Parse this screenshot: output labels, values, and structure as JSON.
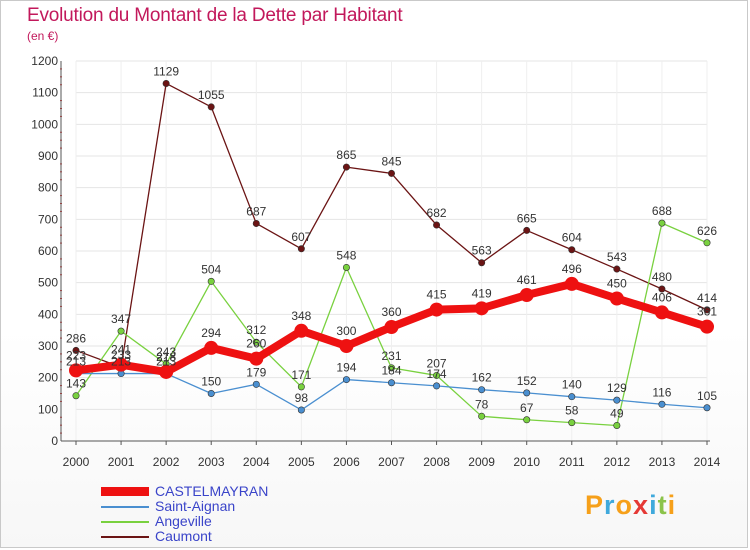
{
  "title": "Evolution du Montant de la Dette par Habitant",
  "subtitle": "(en €)",
  "logo": {
    "text": "Proxiti",
    "colors": [
      "#f6a01a",
      "#3fa9dc",
      "#f6a01a",
      "#e53935",
      "#3fa9dc",
      "#8bc34a",
      "#f6a01a"
    ]
  },
  "chart_data": {
    "type": "line",
    "categories": [
      "2000",
      "2001",
      "2002",
      "2003",
      "2004",
      "2005",
      "2006",
      "2007",
      "2008",
      "2009",
      "2010",
      "2011",
      "2012",
      "2013",
      "2014"
    ],
    "ylim": [
      0,
      1200
    ],
    "yticks": [
      "0",
      "100",
      "200",
      "300",
      "400",
      "500",
      "600",
      "700",
      "800",
      "900",
      "1000",
      "1100",
      "1200"
    ],
    "grid": true,
    "legend_position": "bottom-left",
    "series": [
      {
        "name": "Caumont",
        "color": "#6b1414",
        "values": [
          286,
          233,
          1129,
          1055,
          687,
          607,
          865,
          845,
          682,
          563,
          665,
          604,
          543,
          480,
          414
        ],
        "labels": [
          "286",
          "233",
          "1129",
          "1055",
          "687",
          "607",
          "865",
          "845",
          "682",
          "563",
          "665",
          "604",
          "543",
          "480",
          "414"
        ]
      },
      {
        "name": "Angeville",
        "color": "#79d13f",
        "values": [
          143,
          347,
          243,
          504,
          312,
          171,
          548,
          231,
          207,
          78,
          67,
          58,
          49,
          688,
          626
        ],
        "labels": [
          "143",
          "347",
          "243",
          "504",
          "312",
          "171",
          "548",
          "231",
          "207",
          "78",
          "67",
          "58",
          "49",
          "688",
          "626"
        ]
      },
      {
        "name": "Saint-Aignan",
        "color": "#4a8fd0",
        "values": [
          213,
          213,
          213,
          150,
          179,
          98,
          194,
          184,
          174,
          162,
          152,
          140,
          129,
          116,
          105
        ],
        "labels": [
          "213",
          "213",
          "213",
          "150",
          "179",
          "98",
          "194",
          "184",
          "174",
          "162",
          "152",
          "140",
          "129",
          "116",
          "105"
        ]
      },
      {
        "name": "CASTELMAYRAN",
        "color": "#ee1111",
        "values": [
          223,
          241,
          218,
          294,
          260,
          348,
          300,
          360,
          415,
          419,
          461,
          496,
          450,
          406,
          361
        ],
        "labels": [
          "223",
          "241",
          "218",
          "294",
          "260",
          "348",
          "300",
          "360",
          "415",
          "419",
          "461",
          "496",
          "450",
          "406",
          "361"
        ]
      }
    ],
    "legend": [
      {
        "name": "CASTELMAYRAN",
        "color": "#ee1111"
      },
      {
        "name": "Saint-Aignan",
        "color": "#4a8fd0"
      },
      {
        "name": "Angeville",
        "color": "#79d13f"
      },
      {
        "name": "Caumont",
        "color": "#6b1414"
      }
    ]
  }
}
